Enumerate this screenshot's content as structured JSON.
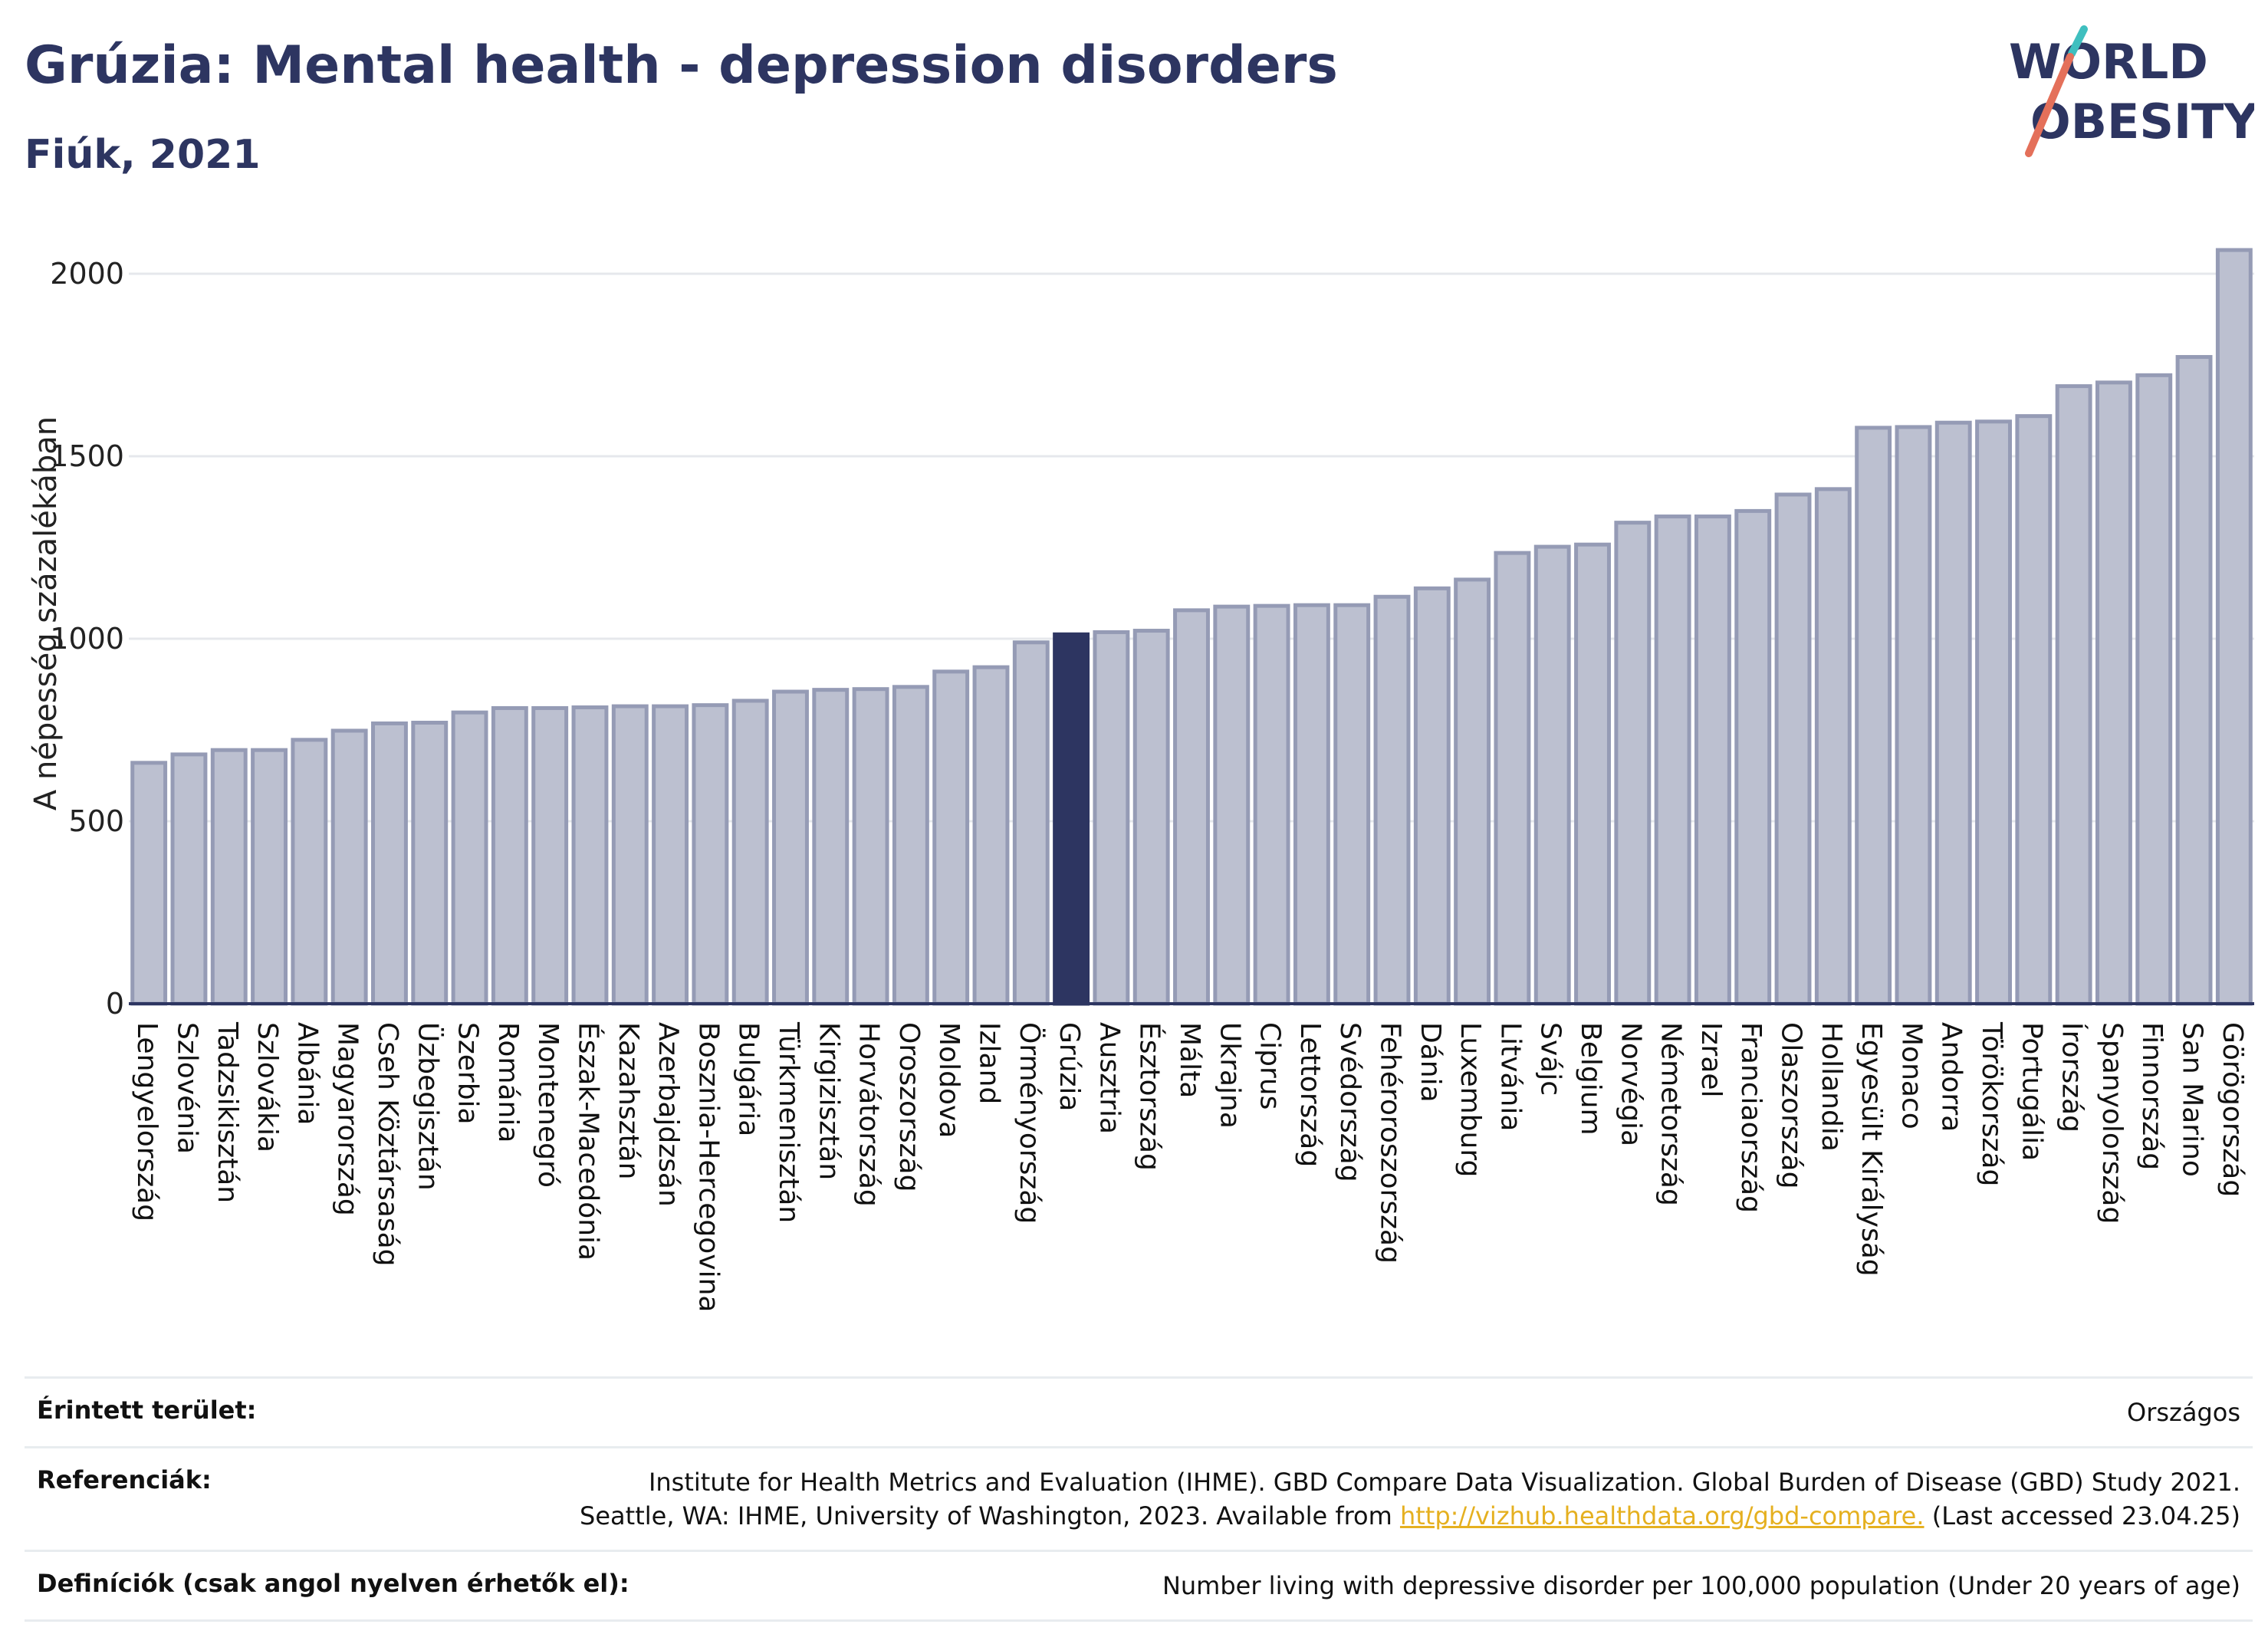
{
  "title": "Grúzia: Mental health - depression disorders",
  "subtitle": "Fiúk, 2021",
  "logo": {
    "line1": "WORLD",
    "line2": "OBESITY",
    "accent_colors": [
      "#3fbfbf",
      "#e4705a"
    ]
  },
  "colors": {
    "bar": "#bcc0d0",
    "bar_border": "#959bb5",
    "highlight": "#2d3561",
    "text": "#2d3561",
    "link": "#e5b020"
  },
  "chart_data": {
    "type": "bar",
    "title": "Grúzia: Mental health - depression disorders",
    "subtitle": "Fiúk, 2021",
    "ylabel": "A népesség százalékában",
    "xlabel": "",
    "ylim": [
      0,
      2100
    ],
    "yticks": [
      0,
      500,
      1000,
      1500,
      2000
    ],
    "grid": true,
    "highlight": "Grúzia",
    "categories": [
      "Lengyelország",
      "Szlovénia",
      "Tadzsikisztán",
      "Szlovákia",
      "Albánia",
      "Magyarország",
      "Cseh Köztársaság",
      "Üzbegisztán",
      "Szerbia",
      "Románia",
      "Montenegró",
      "Észak-Macedónia",
      "Kazahsztán",
      "Azerbajdzsán",
      "Bosznia-Hercegovina",
      "Bulgária",
      "Türkmenisztán",
      "Kirgizisztán",
      "Horvátország",
      "Oroszország",
      "Moldova",
      "Izland",
      "Örményország",
      "Grúzia",
      "Ausztria",
      "Észtország",
      "Málta",
      "Ukrajna",
      "Ciprus",
      "Lettország",
      "Svédország",
      "Fehéroroszország",
      "Dánia",
      "Luxemburg",
      "Litvánia",
      "Svájc",
      "Belgium",
      "Norvégia",
      "Németország",
      "Izrael",
      "Franciaország",
      "Olaszország",
      "Hollandia",
      "Egyesült Királyság",
      "Monaco",
      "Andorra",
      "Törökország",
      "Portugália",
      "Írország",
      "Spanyolország",
      "Finnország",
      "San Marino",
      "Görögország"
    ],
    "values": [
      660,
      683,
      695,
      695,
      723,
      748,
      768,
      770,
      798,
      810,
      810,
      812,
      815,
      815,
      818,
      830,
      855,
      860,
      862,
      868,
      910,
      922,
      990,
      1012,
      1018,
      1022,
      1078,
      1088,
      1090,
      1092,
      1092,
      1115,
      1138,
      1162,
      1235,
      1252,
      1258,
      1318,
      1335,
      1335,
      1350,
      1395,
      1410,
      1578,
      1580,
      1592,
      1595,
      1610,
      1692,
      1702,
      1722,
      1772,
      2065
    ]
  },
  "info": {
    "area_label": "Érintett terület:",
    "area_value": "Országos",
    "references_label": "Referenciák:",
    "references_line1": "Institute for Health Metrics and Evaluation (IHME). GBD Compare Data Visualization. Global Burden of Disease (GBD) Study 2021.",
    "references_line2_pre": "Seattle, WA: IHME, University of Washington, 2023. Available from ",
    "references_link": "http://vizhub.healthdata.org/gbd-compare.",
    "references_line2_post": " (Last accessed 23.04.25)",
    "definitions_label": "Definíciók (csak angol nyelven érhetők el):",
    "definitions_value": "Number living with depressive disorder per 100,000 population (Under 20 years of age)"
  }
}
